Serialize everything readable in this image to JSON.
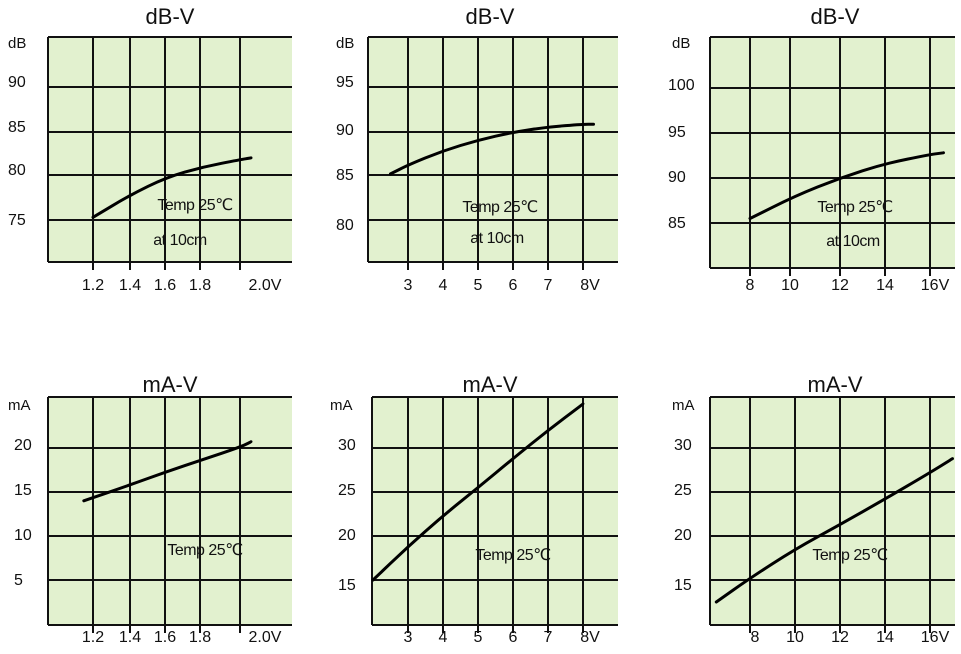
{
  "chart_data": [
    {
      "type": "line",
      "title": "dB-V",
      "ylabel": "dB",
      "x_tick_labels": [
        "1.2",
        "1.4",
        "1.6",
        "1.8",
        "2.0V"
      ],
      "y_tick_labels": [
        "90",
        "85",
        "80",
        "75"
      ],
      "annotations": [
        "Temp 25℃",
        "at 10cm"
      ],
      "x": [
        1.2,
        1.4,
        1.6,
        1.8,
        2.0,
        2.06
      ],
      "y": [
        75.3,
        77.8,
        79.8,
        81.0,
        81.8,
        82.0
      ]
    },
    {
      "type": "line",
      "title": "dB-V",
      "ylabel": "dB",
      "x_tick_labels": [
        "3",
        "4",
        "5",
        "6",
        "7",
        "8V"
      ],
      "y_tick_labels": [
        "95",
        "90",
        "85",
        "80"
      ],
      "annotations": [
        "Temp 25℃",
        "at 10cm"
      ],
      "x": [
        2.5,
        3,
        4,
        5,
        6,
        7,
        8,
        8.3
      ],
      "y": [
        85.2,
        86.2,
        87.8,
        89.0,
        89.9,
        90.5,
        90.8,
        90.8
      ]
    },
    {
      "type": "line",
      "title": "dB-V",
      "ylabel": "dB",
      "x_tick_labels": [
        "8",
        "10",
        "12",
        "14",
        "16V"
      ],
      "y_tick_labels": [
        "100",
        "95",
        "90",
        "85"
      ],
      "annotations": [
        "Temp 25℃",
        "at 10cm"
      ],
      "x": [
        8,
        10,
        12,
        14,
        16,
        16.6
      ],
      "y": [
        85.5,
        88.0,
        90.0,
        91.6,
        92.6,
        92.8
      ]
    },
    {
      "type": "line",
      "title": "mA-V",
      "ylabel": "mA",
      "x_tick_labels": [
        "1.2",
        "1.4",
        "1.6",
        "1.8",
        "2.0V"
      ],
      "y_tick_labels": [
        "20",
        "15",
        "10",
        "5"
      ],
      "annotations": [
        "Temp 25℃"
      ],
      "x": [
        1.15,
        1.4,
        1.6,
        1.8,
        2.0,
        2.06
      ],
      "y": [
        14.0,
        15.8,
        17.3,
        18.7,
        20.1,
        20.7
      ]
    },
    {
      "type": "line",
      "title": "mA-V",
      "ylabel": "mA",
      "x_tick_labels": [
        "3",
        "4",
        "5",
        "6",
        "7",
        "8V"
      ],
      "y_tick_labels": [
        "30",
        "25",
        "20",
        "15"
      ],
      "annotations": [
        "Temp 25℃"
      ],
      "x": [
        2,
        3,
        4,
        5,
        6,
        7,
        8
      ],
      "y": [
        15.0,
        18.8,
        22.3,
        25.5,
        28.8,
        32.0,
        35.0
      ]
    },
    {
      "type": "line",
      "title": "mA-V",
      "ylabel": "mA",
      "x_tick_labels": [
        "8",
        "10",
        "12",
        "14",
        "16V"
      ],
      "y_tick_labels": [
        "30",
        "25",
        "20",
        "15"
      ],
      "annotations": [
        "Temp 25℃"
      ],
      "x": [
        6.5,
        8,
        10,
        12,
        14,
        16,
        17
      ],
      "y": [
        12.5,
        15.2,
        18.5,
        21.3,
        24.2,
        27.2,
        28.8
      ]
    }
  ]
}
